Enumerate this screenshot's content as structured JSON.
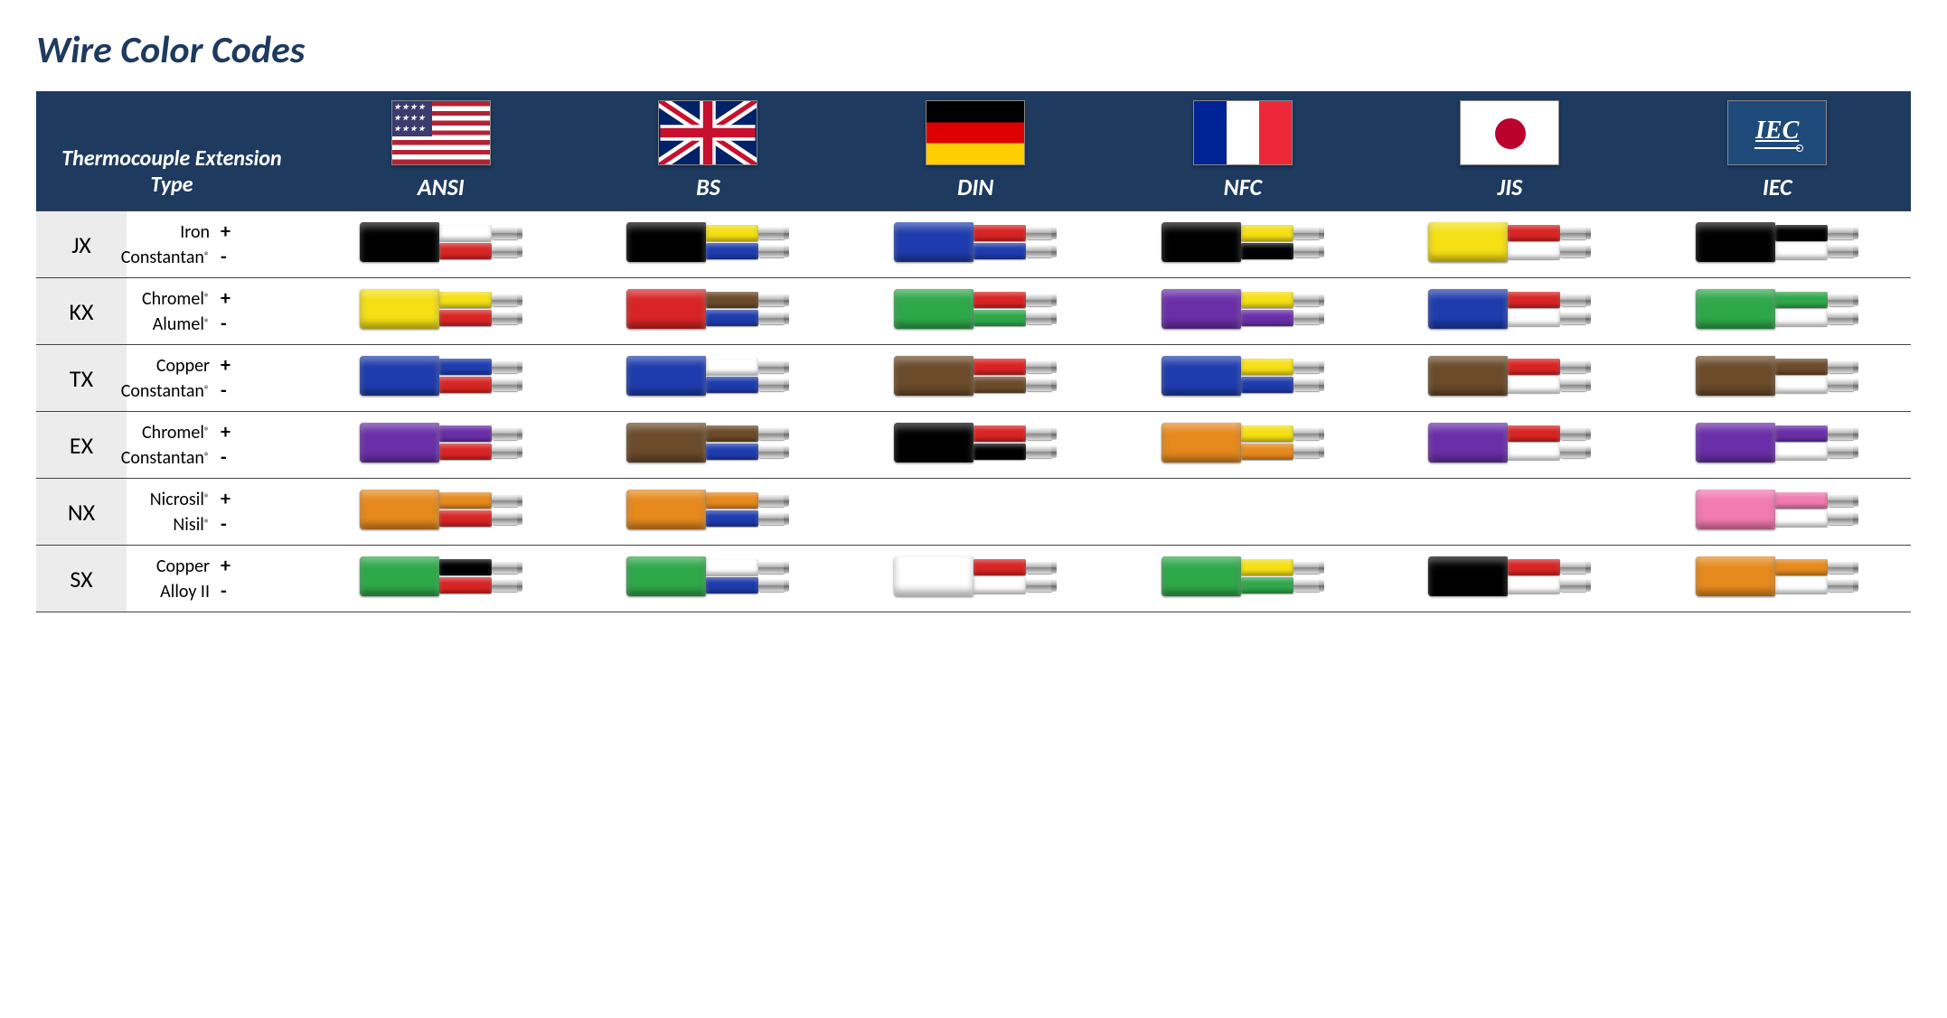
{
  "colors": {
    "header_bg": "#1e3a5f",
    "title_color": "#1e3a5f",
    "row_border": "#444444",
    "code_bg": "#ececec",
    "palette": {
      "black": "#000000",
      "white": "#ffffff",
      "red": "#d82424",
      "yellow": "#f5e016",
      "blue": "#1e3cad",
      "darkblue": "#1a2a7a",
      "green": "#2fa84a",
      "brown": "#6b4b2a",
      "orange": "#e68a1e",
      "purple": "#6a2fa8",
      "pink": "#f27bb0",
      "lightgrey": "#d9d9d9"
    }
  },
  "typography": {
    "title_fontsize": 42,
    "header_fontsize": 26,
    "code_fontsize": 26,
    "material_fontsize": 20
  },
  "title": "Wire Color Codes",
  "type_header": "Thermocouple Extension Type",
  "standards": [
    {
      "id": "ANSI",
      "label": "ANSI",
      "flag": "usa"
    },
    {
      "id": "BS",
      "label": "BS",
      "flag": "uk"
    },
    {
      "id": "DIN",
      "label": "DIN",
      "flag": "de"
    },
    {
      "id": "NFC",
      "label": "NFC",
      "flag": "fr"
    },
    {
      "id": "JIS",
      "label": "JIS",
      "flag": "jp"
    },
    {
      "id": "IEC",
      "label": "IEC",
      "flag": "iec"
    }
  ],
  "rows": [
    {
      "code": "JX",
      "material_pos": "Iron",
      "material_neg": "Constantan®",
      "wires": {
        "ANSI": {
          "jacket": "black",
          "pos": "white",
          "neg": "red"
        },
        "BS": {
          "jacket": "black",
          "pos": "yellow",
          "neg": "blue"
        },
        "DIN": {
          "jacket": "blue",
          "pos": "red",
          "neg": "blue"
        },
        "NFC": {
          "jacket": "black",
          "pos": "yellow",
          "neg": "black"
        },
        "JIS": {
          "jacket": "yellow",
          "pos": "red",
          "neg": "white"
        },
        "IEC": {
          "jacket": "black",
          "pos": "black",
          "neg": "white"
        }
      }
    },
    {
      "code": "KX",
      "material_pos": "Chromel®",
      "material_neg": "Alumel®",
      "wires": {
        "ANSI": {
          "jacket": "yellow",
          "pos": "yellow",
          "neg": "red"
        },
        "BS": {
          "jacket": "red",
          "pos": "brown",
          "neg": "blue"
        },
        "DIN": {
          "jacket": "green",
          "pos": "red",
          "neg": "green"
        },
        "NFC": {
          "jacket": "purple",
          "pos": "yellow",
          "neg": "purple"
        },
        "JIS": {
          "jacket": "blue",
          "pos": "red",
          "neg": "white"
        },
        "IEC": {
          "jacket": "green",
          "pos": "green",
          "neg": "white"
        }
      }
    },
    {
      "code": "TX",
      "material_pos": "Copper",
      "material_neg": "Constantan®",
      "wires": {
        "ANSI": {
          "jacket": "blue",
          "pos": "blue",
          "neg": "red"
        },
        "BS": {
          "jacket": "blue",
          "pos": "white",
          "neg": "blue"
        },
        "DIN": {
          "jacket": "brown",
          "pos": "red",
          "neg": "brown"
        },
        "NFC": {
          "jacket": "blue",
          "pos": "yellow",
          "neg": "blue"
        },
        "JIS": {
          "jacket": "brown",
          "pos": "red",
          "neg": "white"
        },
        "IEC": {
          "jacket": "brown",
          "pos": "brown",
          "neg": "white"
        }
      }
    },
    {
      "code": "EX",
      "material_pos": "Chromel®",
      "material_neg": "Constantan®",
      "wires": {
        "ANSI": {
          "jacket": "purple",
          "pos": "purple",
          "neg": "red"
        },
        "BS": {
          "jacket": "brown",
          "pos": "brown",
          "neg": "blue"
        },
        "DIN": {
          "jacket": "black",
          "pos": "red",
          "neg": "black"
        },
        "NFC": {
          "jacket": "orange",
          "pos": "yellow",
          "neg": "orange"
        },
        "JIS": {
          "jacket": "purple",
          "pos": "red",
          "neg": "white"
        },
        "IEC": {
          "jacket": "purple",
          "pos": "purple",
          "neg": "white"
        }
      }
    },
    {
      "code": "NX",
      "material_pos": "Nicrosil®",
      "material_neg": "Nisil®",
      "wires": {
        "ANSI": {
          "jacket": "orange",
          "pos": "orange",
          "neg": "red"
        },
        "BS": {
          "jacket": "orange",
          "pos": "orange",
          "neg": "blue"
        },
        "DIN": null,
        "NFC": null,
        "JIS": null,
        "IEC": {
          "jacket": "pink",
          "pos": "pink",
          "neg": "white"
        }
      }
    },
    {
      "code": "SX",
      "material_pos": "Copper",
      "material_neg": "Alloy II",
      "wires": {
        "ANSI": {
          "jacket": "green",
          "pos": "black",
          "neg": "red"
        },
        "BS": {
          "jacket": "green",
          "pos": "white",
          "neg": "blue"
        },
        "DIN": {
          "jacket": "white",
          "pos": "red",
          "neg": "white"
        },
        "NFC": {
          "jacket": "green",
          "pos": "yellow",
          "neg": "green"
        },
        "JIS": {
          "jacket": "black",
          "pos": "red",
          "neg": "white"
        },
        "IEC": {
          "jacket": "orange",
          "pos": "orange",
          "neg": "white"
        }
      }
    }
  ]
}
